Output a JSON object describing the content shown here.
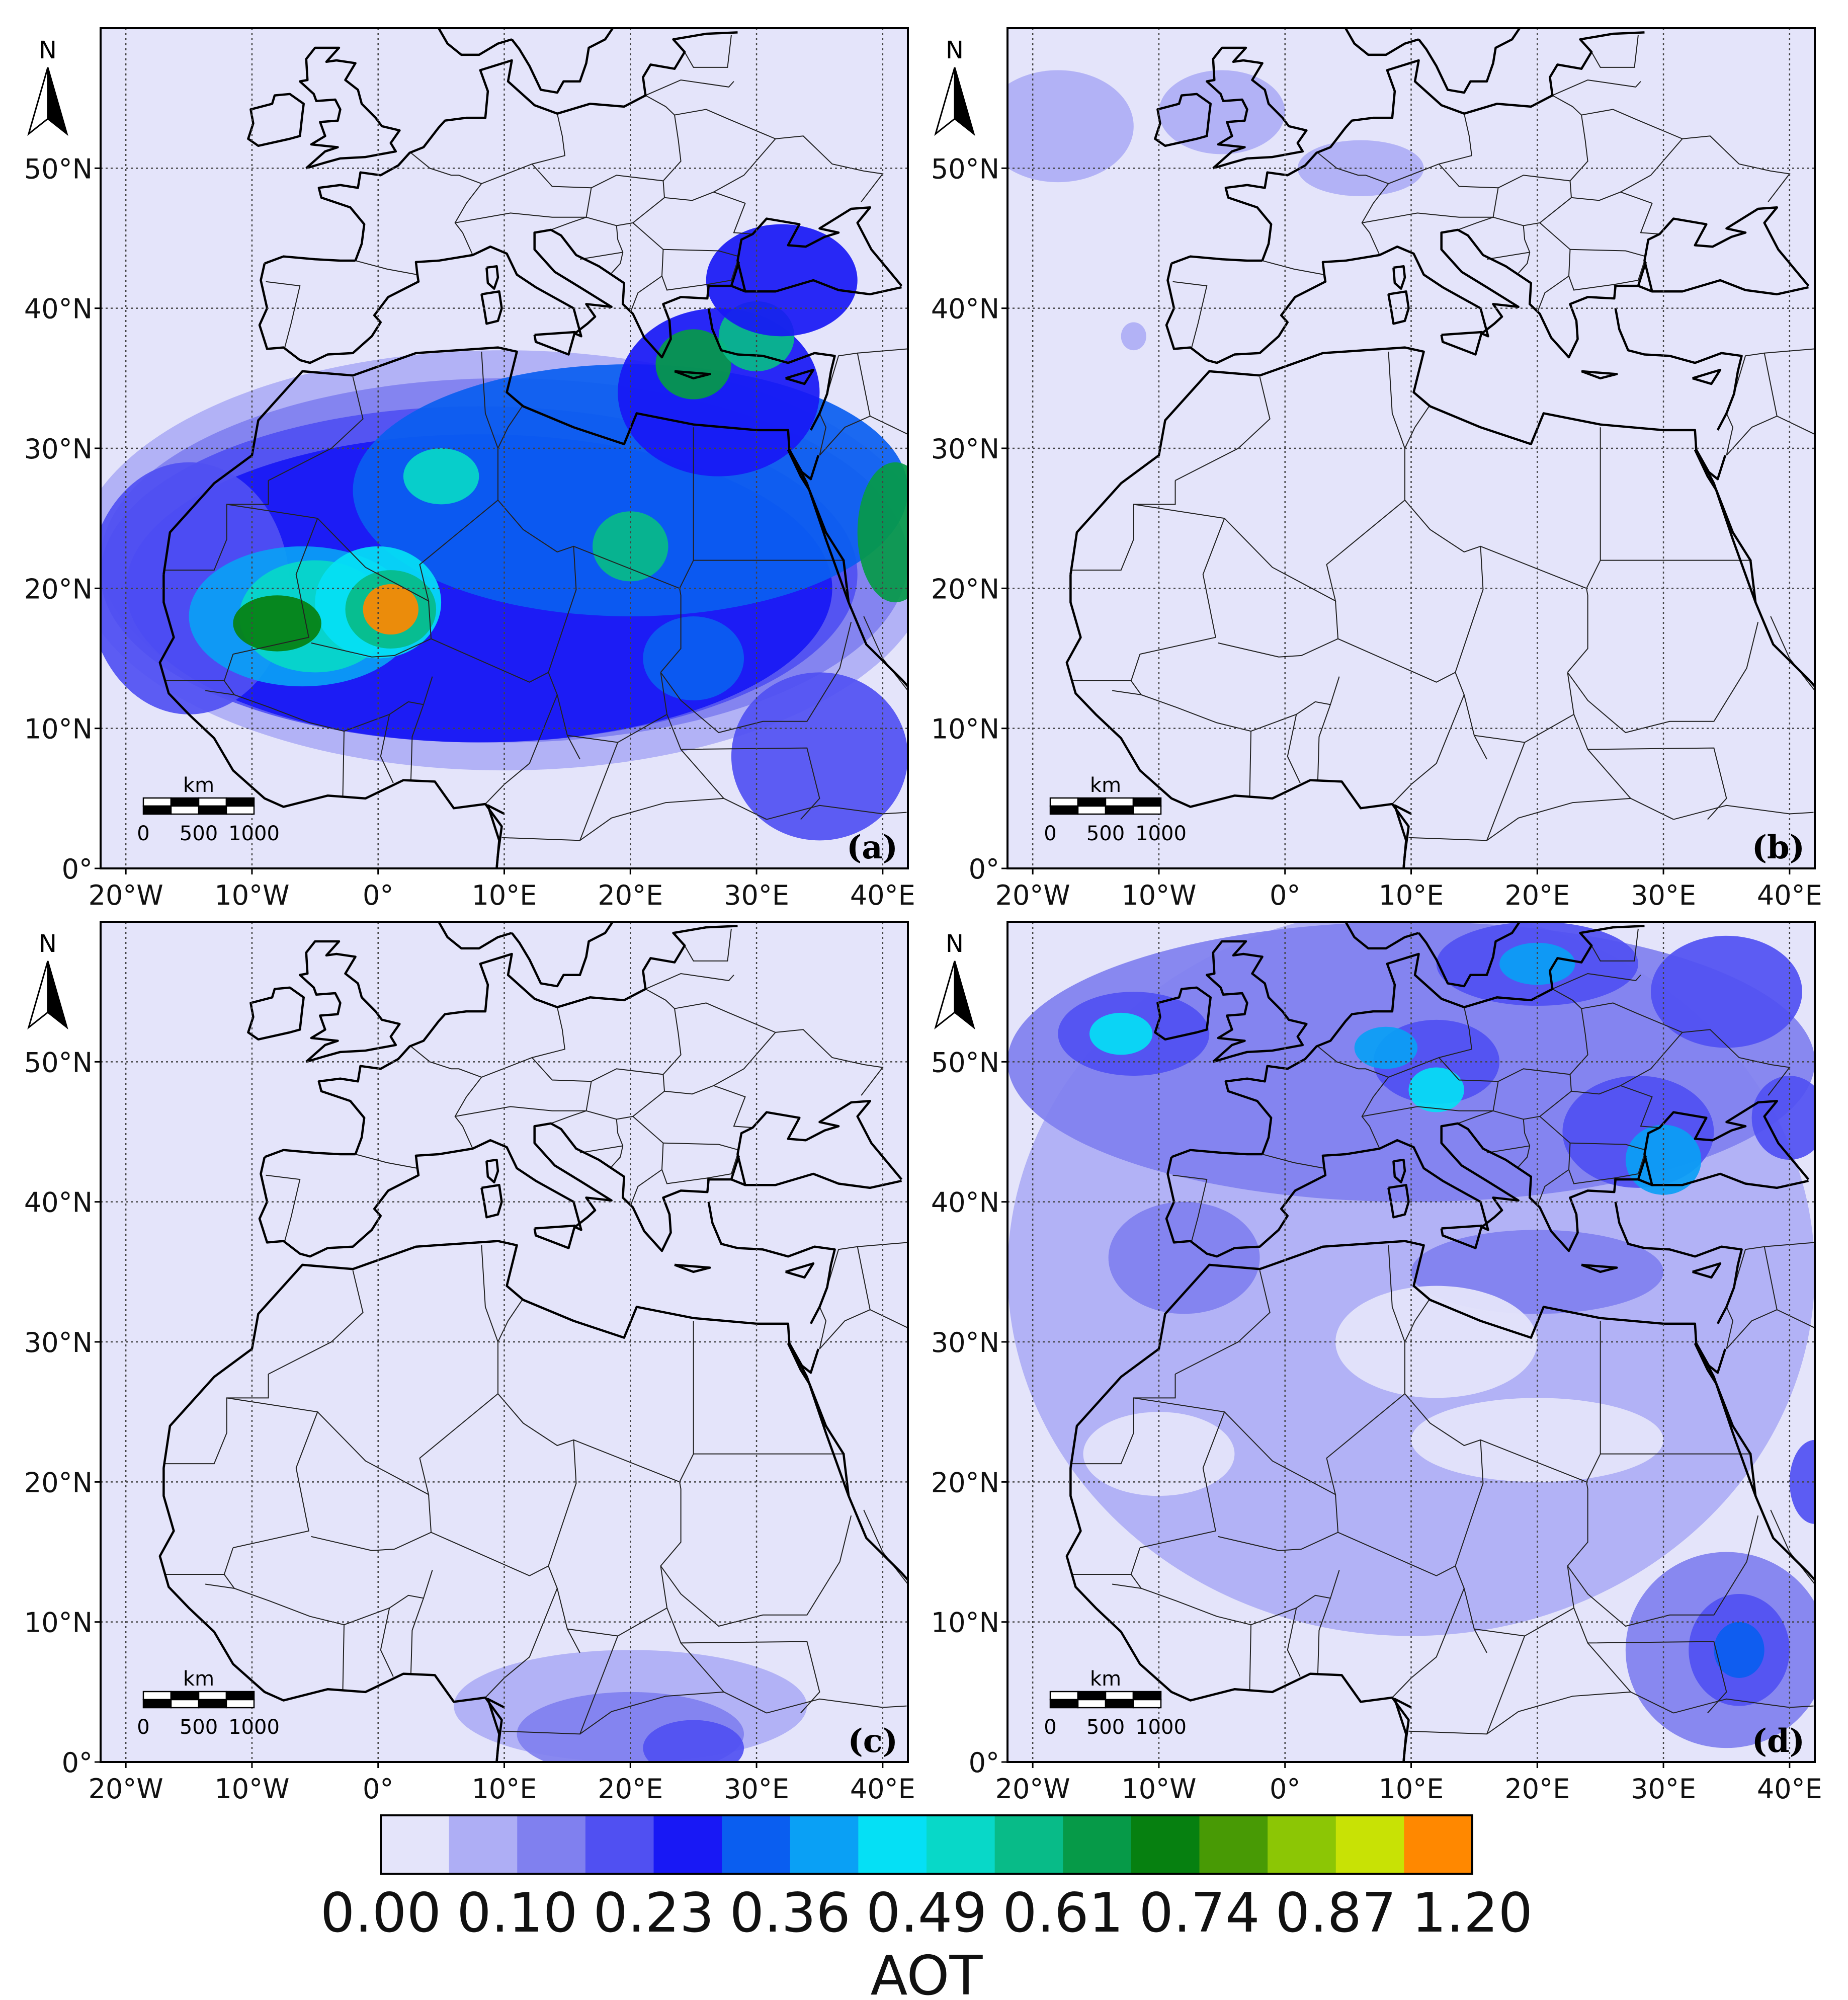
{
  "figure": {
    "panels": [
      {
        "label": "(a)",
        "name": "panel-a"
      },
      {
        "label": "(b)",
        "name": "panel-b"
      },
      {
        "label": "(c)",
        "name": "panel-c"
      },
      {
        "label": "(d)",
        "name": "panel-d"
      }
    ],
    "lon_ticks": [
      "20°W",
      "10°W",
      "0°",
      "10°E",
      "20°E",
      "30°E",
      "40°E"
    ],
    "lon_values": [
      -20,
      -10,
      0,
      10,
      20,
      30,
      40
    ],
    "lat_ticks": [
      "50°N",
      "40°N",
      "30°N",
      "20°N",
      "10°N",
      "0°"
    ],
    "lat_values": [
      50,
      40,
      30,
      20,
      10,
      0
    ],
    "extent": {
      "lon": [
        -22,
        42
      ],
      "lat": [
        0,
        60
      ]
    },
    "north_arrow": {
      "label": "N",
      "icon": "north-arrow-icon"
    },
    "scale_bar": {
      "unit": "km",
      "labels": [
        "0",
        "500",
        "1000"
      ]
    }
  },
  "colorbar": {
    "title": "AOT",
    "tick_labels": [
      "0.00",
      "0.10",
      "0.23",
      "0.36",
      "0.49",
      "0.61",
      "0.74",
      "0.87",
      "1.20"
    ],
    "colors": [
      "#e4e4fa",
      "#aeaef5",
      "#8080ef",
      "#5050f2",
      "#1818f5",
      "#0a5ef0",
      "#0aa0f5",
      "#05e0f5",
      "#08d8c8",
      "#08bb88",
      "#069a48",
      "#068010",
      "#489a05",
      "#8cc605",
      "#c8e205",
      "#ff8800"
    ]
  },
  "colors": {
    "ocean_land_background": "#e4e4fa",
    "coastline": "#000000",
    "borders": "#222222",
    "grid": "#444444"
  }
}
